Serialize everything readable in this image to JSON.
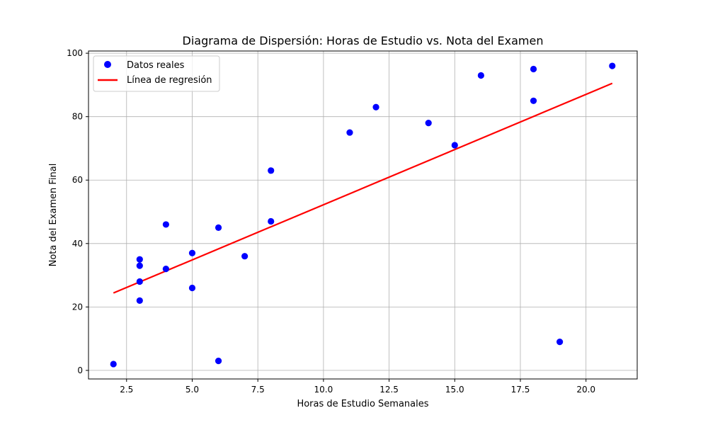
{
  "chart_data": {
    "type": "scatter",
    "title": "Diagrama de Dispersión: Horas de Estudio vs. Nota del Examen",
    "xlabel": "Horas de Estudio Semanales",
    "ylabel": "Nota del Examen Final",
    "xlim": [
      1.05,
      21.95
    ],
    "ylim": [
      -2.7,
      100.7
    ],
    "xticks": [
      2.5,
      5.0,
      7.5,
      10.0,
      12.5,
      15.0,
      17.5,
      20.0
    ],
    "xtick_labels": [
      "2.5",
      "5.0",
      "7.5",
      "10.0",
      "12.5",
      "15.0",
      "17.5",
      "20.0"
    ],
    "yticks": [
      0,
      20,
      40,
      60,
      80,
      100
    ],
    "ytick_labels": [
      "0",
      "20",
      "40",
      "60",
      "80",
      "100"
    ],
    "grid": true,
    "legend_position": "top-left",
    "series": [
      {
        "name": "Datos reales",
        "kind": "scatter",
        "color": "#0000ff",
        "points": [
          [
            2,
            2
          ],
          [
            3,
            22
          ],
          [
            3,
            28
          ],
          [
            3,
            33
          ],
          [
            3,
            35
          ],
          [
            4,
            32
          ],
          [
            4,
            46
          ],
          [
            5,
            26
          ],
          [
            5,
            37
          ],
          [
            6,
            3
          ],
          [
            6,
            45
          ],
          [
            7,
            36
          ],
          [
            8,
            47
          ],
          [
            8,
            63
          ],
          [
            11,
            75
          ],
          [
            12,
            83
          ],
          [
            14,
            78
          ],
          [
            15,
            71
          ],
          [
            16,
            93
          ],
          [
            18,
            85
          ],
          [
            18,
            95
          ],
          [
            19,
            9
          ],
          [
            21,
            96
          ]
        ]
      },
      {
        "name": "Línea de regresión",
        "kind": "line",
        "color": "#ff0000",
        "points": [
          [
            2,
            24.4
          ],
          [
            21,
            90.5
          ]
        ]
      }
    ]
  }
}
